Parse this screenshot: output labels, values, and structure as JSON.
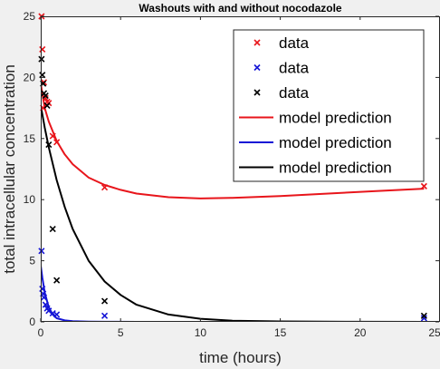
{
  "chart_data": {
    "type": "scatter",
    "title": "Washouts with and without nocodazole",
    "xlabel": "time (hours)",
    "ylabel": "total intracellular concentration",
    "xlim": [
      0,
      25
    ],
    "ylim": [
      0,
      25
    ],
    "x_ticks": [
      "0",
      "5",
      "10",
      "15",
      "20",
      "25"
    ],
    "y_ticks": [
      "0",
      "5",
      "10",
      "15",
      "20",
      "25"
    ],
    "grid": false,
    "legend_position": "top-right",
    "series": [
      {
        "name": "data",
        "kind": "markers",
        "marker": "x",
        "color": "#e8151b",
        "x": [
          0.05,
          0.1,
          0.15,
          0.2,
          0.3,
          0.4,
          0.5,
          0.75,
          1,
          4,
          24
        ],
        "y": [
          25.0,
          22.3,
          17.5,
          19.6,
          18.3,
          18.0,
          17.9,
          15.2,
          14.7,
          11.0,
          11.1
        ]
      },
      {
        "name": "data",
        "kind": "markers",
        "marker": "x",
        "color": "#1515d6",
        "x": [
          0.05,
          0.1,
          0.15,
          0.2,
          0.3,
          0.4,
          0.5,
          0.75,
          1,
          4,
          24
        ],
        "y": [
          5.8,
          2.7,
          2.3,
          2.0,
          1.4,
          1.1,
          0.9,
          0.7,
          0.6,
          0.5,
          0.3
        ]
      },
      {
        "name": "data",
        "kind": "markers",
        "marker": "x",
        "color": "#000000",
        "x": [
          0.05,
          0.1,
          0.15,
          0.2,
          0.3,
          0.4,
          0.5,
          0.75,
          1,
          4,
          24
        ],
        "y": [
          21.5,
          20.2,
          19.5,
          18.7,
          18.5,
          17.7,
          14.5,
          7.6,
          3.4,
          1.7,
          0.5
        ]
      },
      {
        "name": "model prediction",
        "kind": "line",
        "color": "#e8151b",
        "x": [
          0,
          0.25,
          0.5,
          1,
          1.5,
          2,
          3,
          4,
          5,
          6,
          8,
          10,
          12,
          15,
          18,
          21,
          24
        ],
        "y": [
          19.5,
          17.5,
          16.4,
          14.8,
          13.7,
          12.9,
          11.8,
          11.2,
          10.8,
          10.5,
          10.2,
          10.1,
          10.15,
          10.3,
          10.5,
          10.7,
          10.9
        ]
      },
      {
        "name": "model prediction",
        "kind": "line",
        "color": "#1515d6",
        "x": [
          0,
          0.1,
          0.25,
          0.5,
          0.75,
          1,
          1.5,
          2,
          3,
          4,
          6,
          10,
          24
        ],
        "y": [
          4.6,
          3.6,
          2.4,
          1.2,
          0.6,
          0.3,
          0.12,
          0.05,
          0.02,
          0.01,
          0.0,
          0.0,
          0.0
        ]
      },
      {
        "name": "model prediction",
        "kind": "line",
        "color": "#000000",
        "x": [
          0,
          0.25,
          0.5,
          1,
          1.5,
          2,
          3,
          4,
          5,
          6,
          8,
          10,
          12,
          15,
          20,
          24
        ],
        "y": [
          17.7,
          15.9,
          14.3,
          11.6,
          9.4,
          7.6,
          5.0,
          3.3,
          2.2,
          1.4,
          0.6,
          0.25,
          0.1,
          0.04,
          0.01,
          0.0
        ]
      }
    ]
  }
}
